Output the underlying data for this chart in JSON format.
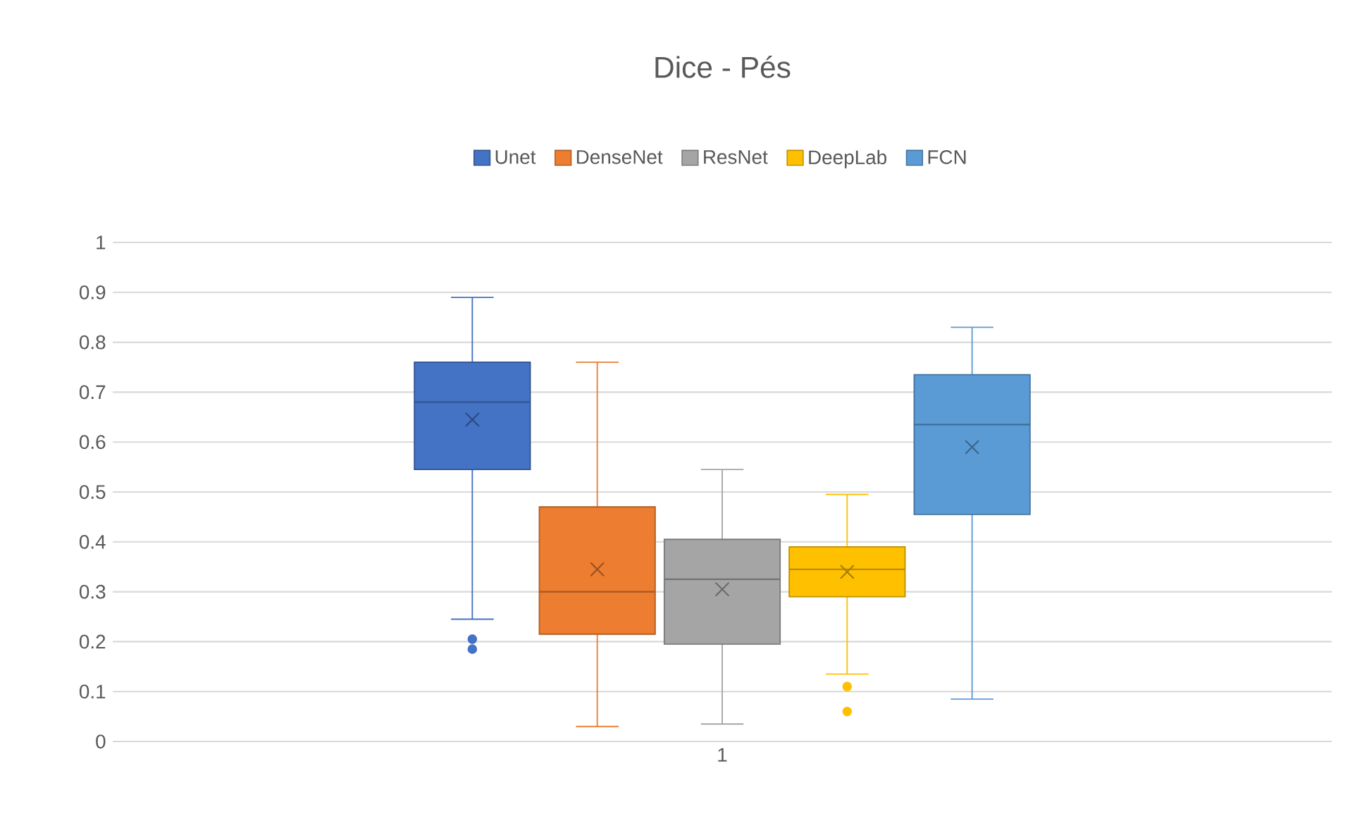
{
  "chart_data": {
    "type": "box",
    "title": "Dice - Pés",
    "categories": [
      "1"
    ],
    "series": [
      {
        "name": "Unet",
        "color": "#4472c4",
        "boxes": [
          {
            "low": 0.245,
            "q1": 0.545,
            "median": 0.68,
            "q3": 0.76,
            "high": 0.89,
            "mean": 0.645,
            "outliers": [
              0.205,
              0.185
            ]
          }
        ]
      },
      {
        "name": "DenseNet",
        "color": "#ed7d31",
        "boxes": [
          {
            "low": 0.03,
            "q1": 0.215,
            "median": 0.3,
            "q3": 0.47,
            "high": 0.76,
            "mean": 0.345
          }
        ]
      },
      {
        "name": "ResNet",
        "color": "#a5a5a5",
        "boxes": [
          {
            "low": 0.035,
            "q1": 0.195,
            "median": 0.325,
            "q3": 0.405,
            "high": 0.545,
            "mean": 0.305
          }
        ]
      },
      {
        "name": "DeepLab",
        "color": "#ffc000",
        "boxes": [
          {
            "low": 0.135,
            "q1": 0.29,
            "median": 0.345,
            "q3": 0.39,
            "high": 0.495,
            "mean": 0.34,
            "outliers": [
              0.11,
              0.06
            ]
          }
        ]
      },
      {
        "name": "FCN",
        "color": "#5b9bd5",
        "boxes": [
          {
            "low": 0.085,
            "q1": 0.455,
            "median": 0.635,
            "q3": 0.735,
            "high": 0.83,
            "mean": 0.59
          }
        ]
      }
    ],
    "ylim": [
      0,
      1
    ],
    "yticks": [
      0,
      0.1,
      0.2,
      0.3,
      0.4,
      0.5,
      0.6,
      0.7,
      0.8,
      0.9,
      1
    ],
    "grid": "y",
    "legend": "top"
  }
}
